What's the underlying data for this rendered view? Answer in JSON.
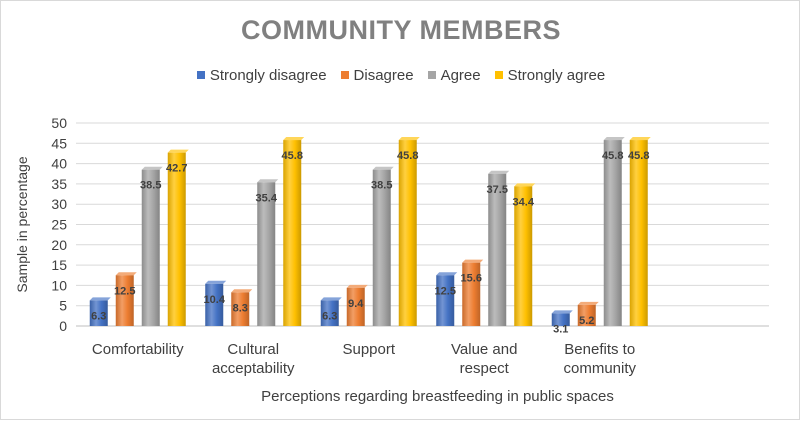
{
  "chart_data": {
    "type": "bar",
    "title": "COMMUNITY MEMBERS",
    "xlabel": "Perceptions regarding breastfeeding in public spaces",
    "ylabel": "Sample in percentage",
    "ylim": [
      0,
      50
    ],
    "ytick_step": 5,
    "grid": true,
    "legend_position": "top",
    "categories": [
      [
        "Comfortability"
      ],
      [
        "Cultural",
        "acceptability"
      ],
      [
        "Support"
      ],
      [
        "Value and",
        "respect"
      ],
      [
        "Benefits to",
        "community"
      ]
    ],
    "series": [
      {
        "name": "Strongly disagree",
        "color": "#4472C4",
        "values": [
          6.3,
          10.4,
          6.3,
          12.5,
          3.1
        ]
      },
      {
        "name": "Disagree",
        "color": "#ED7D31",
        "values": [
          12.5,
          8.3,
          9.4,
          15.6,
          5.2
        ]
      },
      {
        "name": "Agree",
        "color": "#A5A5A5",
        "values": [
          38.5,
          35.4,
          38.5,
          37.5,
          45.8
        ]
      },
      {
        "name": "Strongly agree",
        "color": "#FFC000",
        "values": [
          42.7,
          45.8,
          45.8,
          34.4,
          45.8
        ]
      }
    ]
  }
}
